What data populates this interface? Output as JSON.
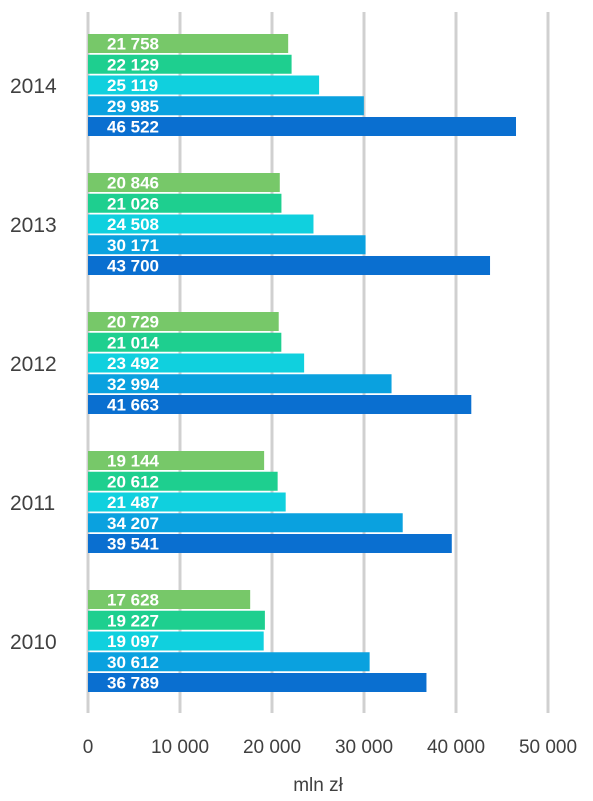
{
  "chart_data": {
    "type": "bar",
    "orientation": "horizontal",
    "categories": [
      "2014",
      "2013",
      "2012",
      "2011",
      "2010"
    ],
    "series": [
      {
        "color": "#77c869",
        "values": [
          21758,
          20846,
          20729,
          19144,
          17628
        ],
        "labels": [
          "21 758",
          "20 846",
          "20 729",
          "19 144",
          "17 628"
        ]
      },
      {
        "color": "#1ecf8f",
        "values": [
          22129,
          21026,
          21014,
          20612,
          19227
        ],
        "labels": [
          "22 129",
          "21 026",
          "21 014",
          "20 612",
          "19 227"
        ]
      },
      {
        "color": "#10d0de",
        "values": [
          25119,
          24508,
          23492,
          21487,
          19097
        ],
        "labels": [
          "25 119",
          "24 508",
          "23 492",
          "21 487",
          "19 097"
        ]
      },
      {
        "color": "#0aa1df",
        "values": [
          29985,
          30171,
          32994,
          34207,
          30612
        ],
        "labels": [
          "29 985",
          "30 171",
          "32 994",
          "34 207",
          "30 612"
        ]
      },
      {
        "color": "#0a6fd0",
        "values": [
          46522,
          43700,
          41663,
          39541,
          36789
        ],
        "labels": [
          "46 522",
          "43 700",
          "41 663",
          "39 541",
          "36 789"
        ]
      }
    ],
    "xlim": [
      0,
      50000
    ],
    "xticks": [
      0,
      10000,
      20000,
      30000,
      40000,
      50000
    ],
    "xtick_labels": [
      "0",
      "10 000",
      "20 000",
      "30 000",
      "40 000",
      "50 000"
    ],
    "xlabel": "mln zł",
    "grid": true,
    "grid_color": "#d0d0d0",
    "label_color": "#404040",
    "legend": "none"
  }
}
